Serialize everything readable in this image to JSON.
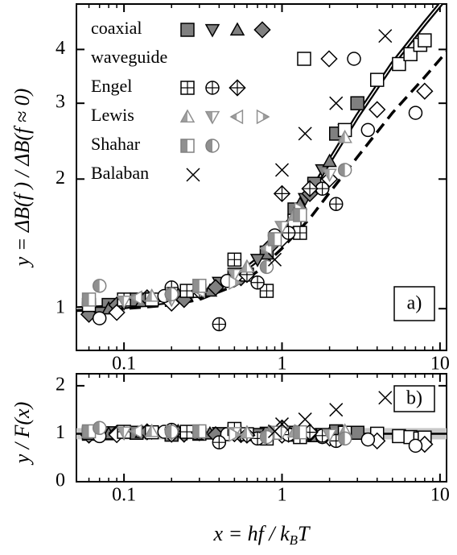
{
  "chart_data": {
    "type": "scatter",
    "xscale": "log",
    "xlim": [
      0.05,
      11
    ],
    "xticks": [
      0.1,
      1,
      10
    ],
    "xminorticks": [
      0.06,
      0.07,
      0.08,
      0.09,
      0.2,
      0.3,
      0.4,
      0.5,
      0.6,
      0.7,
      0.8,
      0.9,
      2,
      3,
      4,
      5,
      6,
      7,
      8,
      9
    ],
    "xlabel": {
      "main": "x = hf / k",
      "sub": "B",
      "end": "T"
    },
    "panels": {
      "top": {
        "ylabel": "y = ΔB(f ) / ΔB(f ≈ 0)",
        "yscale": "log",
        "ylim": [
          0.8,
          5.1
        ],
        "yticks": [
          1,
          2,
          3,
          4
        ],
        "label": "a)"
      },
      "bottom": {
        "ylabel": "y / F(x)",
        "yscale": "linear",
        "ylim": [
          0,
          2.25
        ],
        "yticks": [
          0,
          1,
          2
        ],
        "ref_line": 1,
        "label": "b)"
      }
    },
    "curves": [
      {
        "style": "solid",
        "x": [
          0.05,
          0.1,
          0.2,
          0.3,
          0.5,
          0.7,
          1,
          1.5,
          2,
          3,
          5,
          8,
          11
        ],
        "values": [
          1.0,
          1.01,
          1.04,
          1.08,
          1.18,
          1.3,
          1.5,
          1.85,
          2.2,
          2.8,
          3.7,
          4.6,
          5.3
        ]
      },
      {
        "style": "dashed",
        "x": [
          0.05,
          0.1,
          0.2,
          0.3,
          0.5,
          0.7,
          1,
          1.5,
          2,
          3,
          5,
          8,
          11
        ],
        "values": [
          0.99,
          1.0,
          1.02,
          1.05,
          1.13,
          1.22,
          1.38,
          1.62,
          1.86,
          2.25,
          2.85,
          3.45,
          3.95
        ]
      }
    ],
    "series": [
      {
        "name": "coaxial",
        "color": "#000000",
        "fill": "#808080",
        "groups": [
          {
            "marker": "square",
            "x": [
              0.06,
              0.08,
              0.12,
              0.2,
              0.3,
              0.5,
              0.8,
              1.2,
              1.6,
              2.2,
              3
            ],
            "values": [
              1.0,
              1.02,
              1.05,
              1.06,
              1.1,
              1.2,
              1.35,
              1.7,
              1.95,
              2.55,
              3.0
            ],
            "ratios": [
              1.0,
              1.01,
              1.02,
              0.98,
              1.0,
              1.03,
              1.0,
              1.02,
              0.97,
              1.05,
              1.02
            ]
          },
          {
            "marker": "tri-down",
            "x": [
              0.07,
              0.1,
              0.15,
              0.25,
              0.4,
              0.7,
              1,
              1.4,
              1.8,
              2.5
            ],
            "values": [
              0.98,
              1.03,
              1.05,
              1.07,
              1.15,
              1.3,
              1.55,
              1.8,
              2.1,
              2.6
            ],
            "ratios": [
              0.98,
              1.02,
              1.03,
              1.01,
              1.02,
              1.0,
              1.04,
              1.01,
              1.0,
              1.03
            ]
          },
          {
            "marker": "tri-up",
            "x": [
              0.08,
              0.13,
              0.22,
              0.35,
              0.6,
              0.9,
              1.3,
              2
            ],
            "values": [
              1.0,
              1.04,
              1.08,
              1.1,
              1.25,
              1.45,
              1.75,
              2.2
            ],
            "ratios": [
              1.0,
              1.03,
              1.05,
              1.0,
              1.02,
              1.0,
              1.01,
              1.0
            ]
          },
          {
            "marker": "diamond",
            "x": [
              0.06,
              0.09,
              0.14,
              0.24,
              0.38,
              0.55,
              0.85,
              1.1,
              1.5
            ],
            "values": [
              0.97,
              1.02,
              1.06,
              1.05,
              1.12,
              1.18,
              1.4,
              1.55,
              1.85
            ],
            "ratios": [
              0.97,
              1.01,
              1.04,
              0.99,
              0.98,
              0.98,
              1.0,
              0.99,
              1.0
            ]
          }
        ]
      },
      {
        "name": "waveguide",
        "color": "#000000",
        "fill": "#ffffff",
        "groups": [
          {
            "marker": "square",
            "x": [
              0.06,
              0.15,
              0.3,
              0.6,
              1.2,
              2.5,
              4,
              5.5,
              6.5,
              7.5,
              8
            ],
            "values": [
              1.02,
              1.05,
              1.1,
              1.2,
              1.6,
              2.6,
              3.4,
              3.7,
              3.9,
              4.1,
              4.2
            ],
            "ratios": [
              1.02,
              1.03,
              1.02,
              0.99,
              0.98,
              1.02,
              1.0,
              0.95,
              0.93,
              0.9,
              0.92
            ]
          },
          {
            "marker": "diamond",
            "x": [
              0.09,
              0.2,
              0.5,
              1,
              2,
              4,
              8
            ],
            "values": [
              0.98,
              1.03,
              1.18,
              1.45,
              2.0,
              2.9,
              3.2
            ],
            "ratios": [
              0.98,
              0.99,
              1.0,
              0.97,
              0.91,
              0.85,
              0.78
            ]
          },
          {
            "marker": "circle",
            "x": [
              0.07,
              0.18,
              0.45,
              0.9,
              1.8,
              3.5,
              7
            ],
            "values": [
              0.95,
              1.07,
              1.16,
              1.48,
              1.9,
              2.6,
              2.85
            ],
            "ratios": [
              0.95,
              1.04,
              0.99,
              1.02,
              0.93,
              0.88,
              0.75
            ]
          }
        ]
      },
      {
        "name": "Engel",
        "color": "#000000",
        "fill": "#ffffff",
        "groups": [
          {
            "marker": "square-plus",
            "x": [
              0.1,
              0.25,
              0.5,
              0.8,
              1.3
            ],
            "values": [
              1.05,
              1.1,
              1.3,
              1.1,
              1.5
            ],
            "ratios": [
              1.04,
              1.04,
              1.1,
              0.9,
              0.93
            ]
          },
          {
            "marker": "circle-plus",
            "x": [
              0.2,
              0.4,
              0.7,
              1.1,
              1.8,
              2.2
            ],
            "values": [
              1.12,
              0.92,
              1.15,
              1.5,
              1.9,
              1.75
            ],
            "ratios": [
              1.08,
              0.82,
              0.9,
              0.98,
              0.96,
              0.85
            ]
          },
          {
            "marker": "diamond-plus",
            "x": [
              0.3,
              0.6,
              1,
              1.5
            ],
            "values": [
              1.1,
              1.2,
              1.85,
              1.9
            ],
            "ratios": [
              1.02,
              0.97,
              1.12,
              1.03
            ]
          }
        ]
      },
      {
        "name": "Lewis",
        "color": "#909090",
        "fill": "#a0a0a0",
        "groups": [
          {
            "marker": "tri-up-half",
            "x": [
              0.15,
              0.3,
              0.6,
              1.2,
              2.5
            ],
            "values": [
              1.07,
              1.12,
              1.25,
              1.65,
              2.5
            ],
            "ratios": [
              1.05,
              1.04,
              1.02,
              1.04,
              1.06
            ]
          },
          {
            "marker": "tri-down-half",
            "x": [
              0.1,
              0.2,
              0.5,
              1,
              2
            ],
            "values": [
              1.04,
              1.05,
              1.2,
              1.55,
              2.05
            ],
            "ratios": [
              1.03,
              1.01,
              1.02,
              1.03,
              0.98
            ]
          },
          {
            "marker": "tri-left-half",
            "x": [
              0.12,
              0.3,
              0.8
            ],
            "values": [
              1.06,
              1.1,
              1.38
            ],
            "ratios": [
              1.05,
              1.02,
              1.01
            ]
          },
          {
            "marker": "tri-right-half",
            "x": [
              0.2,
              0.5,
              1.3
            ],
            "values": [
              1.08,
              1.15,
              1.7
            ],
            "ratios": [
              1.04,
              0.98,
              1.05
            ]
          }
        ]
      },
      {
        "name": "Shahar",
        "color": "#808080",
        "fill": "#909090",
        "groups": [
          {
            "marker": "square-half",
            "x": [
              0.06,
              0.3,
              0.9,
              1.3
            ],
            "values": [
              1.05,
              1.13,
              1.45,
              1.65
            ],
            "ratios": [
              1.05,
              1.05,
              1.02,
              1.03
            ]
          },
          {
            "marker": "circle-half",
            "x": [
              0.07,
              0.2,
              0.8,
              2.5
            ],
            "values": [
              1.13,
              1.08,
              1.25,
              2.1
            ],
            "ratios": [
              1.12,
              1.04,
              0.93,
              0.9
            ]
          }
        ]
      },
      {
        "name": "Balaban",
        "color": "#000000",
        "fill": "none",
        "groups": [
          {
            "marker": "cross",
            "x": [
              0.9,
              1.0,
              1.4,
              2.2,
              4.5
            ],
            "values": [
              1.3,
              2.1,
              2.55,
              3.0,
              4.3
            ],
            "ratios": [
              1.05,
              1.2,
              1.3,
              1.5,
              1.75
            ]
          }
        ]
      }
    ]
  }
}
